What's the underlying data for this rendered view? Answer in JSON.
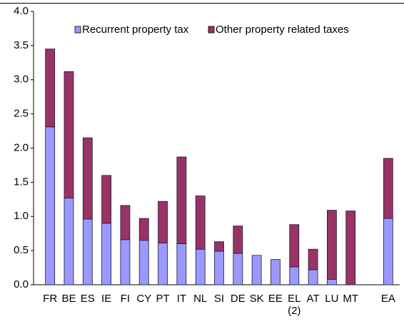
{
  "chart_data": {
    "type": "stacked_bar",
    "categories": [
      "FR",
      "BE",
      "ES",
      "IE",
      "FI",
      "CY",
      "PT",
      "IT",
      "NL",
      "SI",
      "DE",
      "SK",
      "EE",
      "EL (2)",
      "AT",
      "LU",
      "MT",
      null,
      "EA"
    ],
    "series": [
      {
        "name": "Recurrent property tax",
        "color": "#9999ff",
        "values": [
          2.31,
          1.27,
          0.96,
          0.9,
          0.66,
          0.65,
          0.61,
          0.6,
          0.52,
          0.49,
          0.46,
          0.43,
          0.37,
          0.26,
          0.22,
          0.08,
          0,
          null,
          0.97
        ]
      },
      {
        "name": "Other property related taxes",
        "color": "#993366",
        "values": [
          1.14,
          1.85,
          1.19,
          0.7,
          0.5,
          0.32,
          0.61,
          1.27,
          0.78,
          0.14,
          0.4,
          0,
          0,
          0.62,
          0.3,
          1.01,
          1.08,
          null,
          0.88
        ]
      }
    ],
    "ylim": [
      0,
      4
    ],
    "yticks": [
      {
        "value": 0,
        "label": "0.0"
      },
      0.5,
      {
        "value": 1,
        "label": "1.0"
      },
      1.5,
      {
        "value": 2,
        "label": "2.0"
      },
      2.5,
      {
        "value": 3,
        "label": "3.0"
      },
      3.5,
      {
        "value": 4,
        "label": "4.0"
      }
    ]
  }
}
